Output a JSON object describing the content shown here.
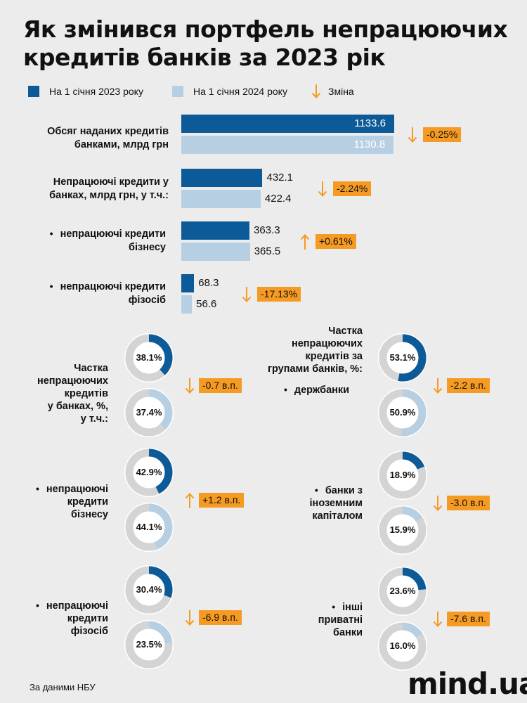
{
  "title": "Як змінився портфель непрацюючих кредитів банків за 2023 рік",
  "legend": {
    "series_a": "На 1 січня 2023 року",
    "series_b": "На 1 січня 2024 року",
    "change": "Зміна"
  },
  "colors": {
    "series_a": "#0d5a98",
    "series_b": "#b7cfe3",
    "change": "#f59a22",
    "donut_bg": "#d4d4d4"
  },
  "chart_data": [
    {
      "type": "bar",
      "categories": [
        "Обсяг наданих кредитів банками, млрд грн",
        "Непрацюючі кредити у банках, млрд грн, у т.ч.:",
        "непрацюючі кредити бізнесу",
        "непрацюючі кредити фізосіб"
      ],
      "series": [
        {
          "name": "На 1 січня 2023 року",
          "values": [
            1133.6,
            432.1,
            363.3,
            68.3
          ]
        },
        {
          "name": "На 1 січня 2024 року",
          "values": [
            1130.8,
            422.4,
            365.5,
            56.6
          ]
        }
      ],
      "value_labels": {
        "series_a": [
          "1133.6",
          "432.1",
          "363.3",
          "68.3"
        ],
        "series_b": [
          "1130.8",
          "422.4",
          "365.5",
          "56.6"
        ]
      },
      "changes": [
        {
          "label": "-0.25%",
          "direction": "down"
        },
        {
          "label": "-2.24%",
          "direction": "down"
        },
        {
          "label": "+0.61%",
          "direction": "up"
        },
        {
          "label": "-17.13%",
          "direction": "down"
        }
      ]
    },
    {
      "type": "pie",
      "label_lines": [
        "Частка",
        "непрацюючих",
        "кредитів",
        "у банках, %,",
        "у т.ч.:"
      ],
      "groups": [
        {
          "label_lines": [],
          "values": [
            38.1,
            37.4
          ],
          "value_labels": [
            "38.1%",
            "37.4%"
          ],
          "change": {
            "label": "-0.7 в.п.",
            "direction": "down"
          }
        },
        {
          "label_lines": [
            "непрацюючі",
            "кредити",
            "бізнесу"
          ],
          "values": [
            42.9,
            44.1
          ],
          "value_labels": [
            "42.9%",
            "44.1%"
          ],
          "change": {
            "label": "+1.2 в.п.",
            "direction": "up"
          }
        },
        {
          "label_lines": [
            "непрацюючі",
            "кредити",
            "фізосіб"
          ],
          "values": [
            30.4,
            23.5
          ],
          "value_labels": [
            "30.4%",
            "23.5%"
          ],
          "change": {
            "label": "-6.9 в.п.",
            "direction": "down"
          }
        }
      ]
    },
    {
      "type": "pie",
      "label_lines": [
        "Частка",
        "непрацюючих",
        "кредитів за",
        "групами банків, %:"
      ],
      "groups": [
        {
          "label_lines": [
            "держбанки"
          ],
          "values": [
            53.1,
            50.9
          ],
          "value_labels": [
            "53.1%",
            "50.9%"
          ],
          "change": {
            "label": "-2.2 в.п.",
            "direction": "down"
          }
        },
        {
          "label_lines": [
            "банки з",
            "іноземним",
            "капіталом"
          ],
          "values": [
            18.9,
            15.9
          ],
          "value_labels": [
            "18.9%",
            "15.9%"
          ],
          "change": {
            "label": "-3.0 в.п.",
            "direction": "down"
          }
        },
        {
          "label_lines": [
            "інші",
            "приватні",
            "банки"
          ],
          "values": [
            23.6,
            16.0
          ],
          "value_labels": [
            "23.6%",
            "16.0%"
          ],
          "change": {
            "label": "-7.6 в.п.",
            "direction": "down"
          }
        }
      ]
    }
  ],
  "source": "За даними НБУ",
  "logo": "mind.ua"
}
